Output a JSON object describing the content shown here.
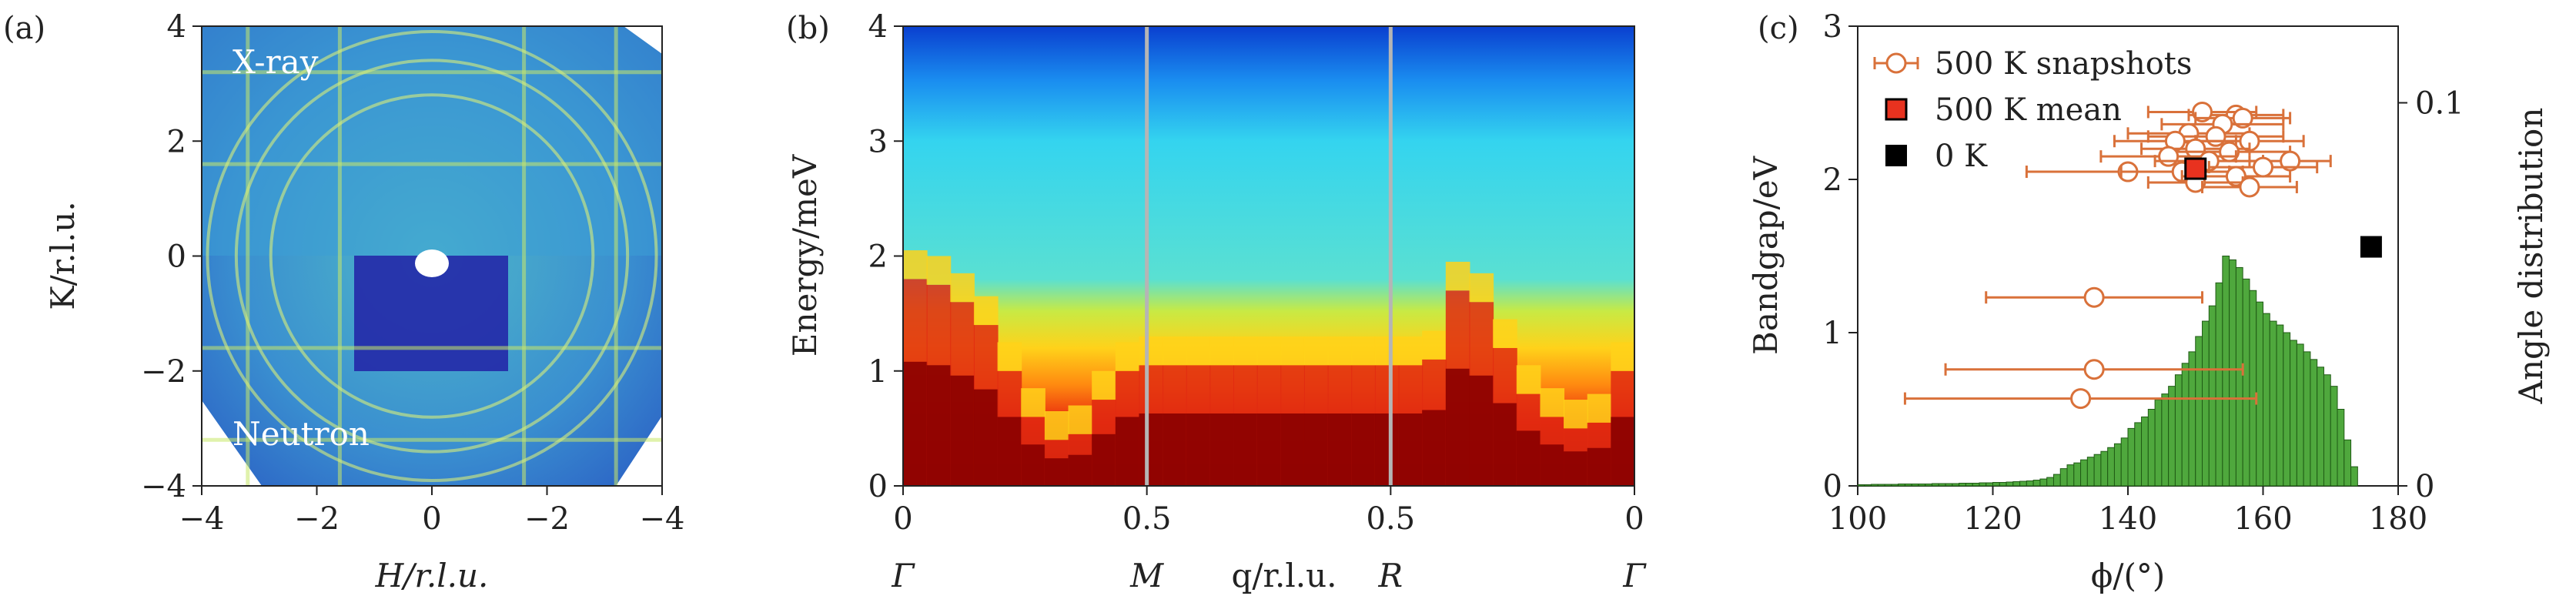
{
  "colors": {
    "hist_fill": "#4fa83d",
    "hist_edge": "#1f5a14",
    "snapshot": "#d9713a",
    "mean_fill": "#e8321f",
    "zero_k": "#000000",
    "vline": "#b5b5b5"
  },
  "chart_data": [
    {
      "panel": "(a)",
      "type": "heatmap",
      "overlay_labels": [
        "X-ray",
        "Neutron"
      ],
      "xlabel": "H/r.l.u.",
      "ylabel": "K/r.l.u.",
      "x_ticks": [
        "−4",
        "−2",
        "0",
        "−2",
        "−4"
      ],
      "y_ticks": [
        "−4",
        "−2",
        "0",
        "2",
        "4"
      ],
      "xlim": [
        -4,
        4
      ],
      "ylim": [
        -4,
        4
      ],
      "bragg_lines": [
        -3.2,
        -1.6,
        1.6,
        3.2
      ],
      "rings_radius": [
        2.8,
        3.4,
        3.9
      ]
    },
    {
      "panel": "(b)",
      "type": "heatmap",
      "ylabel": "Energy/meV",
      "xlabel": "q/r.l.u.",
      "x_ticks": [
        "0",
        "0.5",
        "0.5",
        "0"
      ],
      "y_ticks": [
        "0",
        "1",
        "2",
        "3",
        "4"
      ],
      "ylim": [
        0,
        4
      ],
      "symmetry_points": [
        "Γ",
        "M",
        "R",
        "Γ"
      ],
      "segment_bounds": [
        0,
        0.5,
        1.0,
        1.5
      ],
      "low_band_top_meV": [
        1.8,
        1.75,
        1.6,
        1.4,
        1.0,
        0.6,
        0.4,
        0.45,
        0.75,
        1.0,
        1.05,
        1.05,
        1.05,
        1.05,
        1.05,
        1.05,
        1.05,
        1.05,
        1.05,
        1.05,
        1.05,
        1.05,
        1.1,
        1.7,
        1.6,
        1.2,
        0.8,
        0.6,
        0.5,
        0.55,
        1.0
      ]
    },
    {
      "panel": "(c)",
      "type": "scatter",
      "xlabel": "ϕ/(°)",
      "ylabel": "Bandgap/eV",
      "y2label": "Angle distribution",
      "xlim": [
        100,
        180
      ],
      "ylim": [
        0,
        3.0
      ],
      "y2lim": [
        0,
        0.12
      ],
      "x_ticks": [
        "100",
        "120",
        "140",
        "160",
        "180"
      ],
      "y_ticks": [
        "0",
        "1",
        "2",
        "3"
      ],
      "y2_ticks": [
        "0",
        "0.1"
      ],
      "legend": [
        "500 K snapshots",
        "500 K mean",
        "0 K"
      ],
      "series": [
        {
          "name": "500 K snapshots",
          "points": [
            {
              "x": 156,
              "y": 2.42,
              "xerr": 7
            },
            {
              "x": 151,
              "y": 2.44,
              "xerr": 8
            },
            {
              "x": 157,
              "y": 2.4,
              "xerr": 7
            },
            {
              "x": 154,
              "y": 2.36,
              "xerr": 9
            },
            {
              "x": 149,
              "y": 2.3,
              "xerr": 9
            },
            {
              "x": 153,
              "y": 2.28,
              "xerr": 10
            },
            {
              "x": 147,
              "y": 2.25,
              "xerr": 9
            },
            {
              "x": 158,
              "y": 2.25,
              "xerr": 8
            },
            {
              "x": 150,
              "y": 2.2,
              "xerr": 8
            },
            {
              "x": 155,
              "y": 2.18,
              "xerr": 9
            },
            {
              "x": 146,
              "y": 2.15,
              "xerr": 10
            },
            {
              "x": 152,
              "y": 2.12,
              "xerr": 8
            },
            {
              "x": 164,
              "y": 2.12,
              "xerr": 6
            },
            {
              "x": 160,
              "y": 2.08,
              "xerr": 8
            },
            {
              "x": 140,
              "y": 2.05,
              "xerr": 15
            },
            {
              "x": 148,
              "y": 2.05,
              "xerr": 9
            },
            {
              "x": 156,
              "y": 2.02,
              "xerr": 8
            },
            {
              "x": 150,
              "y": 1.98,
              "xerr": 7
            },
            {
              "x": 158,
              "y": 1.95,
              "xerr": 7
            },
            {
              "x": 135,
              "y": 1.23,
              "xerr": 16
            },
            {
              "x": 135,
              "y": 0.76,
              "xerr": 22
            },
            {
              "x": 133,
              "y": 0.57,
              "xerr": 26
            }
          ]
        },
        {
          "name": "500 K mean",
          "points": [
            {
              "x": 150,
              "y": 2.07
            }
          ]
        },
        {
          "name": "0 K",
          "points": [
            {
              "x": 176,
              "y": 1.56
            }
          ]
        }
      ],
      "histogram": {
        "bin_width": 1,
        "bins_start": 100,
        "heights": [
          0.0003,
          0.0003,
          0.0004,
          0.0004,
          0.0004,
          0.0004,
          0.0005,
          0.0005,
          0.0005,
          0.0005,
          0.0005,
          0.0006,
          0.0006,
          0.0006,
          0.0006,
          0.0007,
          0.0007,
          0.0007,
          0.0008,
          0.0008,
          0.0009,
          0.0009,
          0.001,
          0.0011,
          0.0012,
          0.0013,
          0.0015,
          0.0018,
          0.0022,
          0.003,
          0.0045,
          0.0055,
          0.006,
          0.0068,
          0.0075,
          0.0082,
          0.009,
          0.01,
          0.011,
          0.0125,
          0.015,
          0.0165,
          0.018,
          0.02,
          0.0225,
          0.024,
          0.026,
          0.029,
          0.032,
          0.035,
          0.039,
          0.043,
          0.047,
          0.053,
          0.06,
          0.059,
          0.057,
          0.054,
          0.051,
          0.048,
          0.045,
          0.043,
          0.042,
          0.04,
          0.038,
          0.037,
          0.035,
          0.033,
          0.031,
          0.029,
          0.026,
          0.02,
          0.012,
          0.005
        ]
      }
    }
  ]
}
